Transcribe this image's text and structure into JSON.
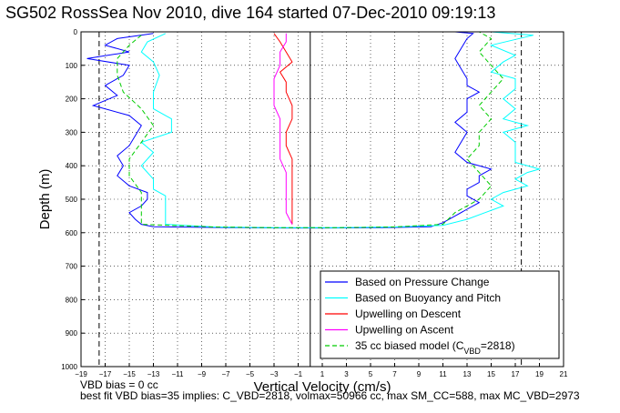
{
  "chart_data": {
    "type": "line",
    "title": "SG502 RossSea Nov 2010, dive 164 started 07-Dec-2010 09:19:13",
    "xlabel": "Vertical Velocity (cm/s)",
    "ylabel": "Depth (m)",
    "xlim": [
      -19,
      21
    ],
    "ylim": [
      0,
      1000
    ],
    "y_reversed": true,
    "grid": true,
    "x_ticks": [
      -19,
      -17,
      -15,
      -13,
      -11,
      -9,
      -7,
      -5,
      -3,
      -1,
      1,
      3,
      5,
      7,
      9,
      11,
      13,
      15,
      17,
      19,
      21
    ],
    "y_ticks": [
      0,
      100,
      200,
      300,
      400,
      500,
      600,
      700,
      800,
      900,
      1000
    ],
    "vertical_dashed_lines_x": [
      -17.5,
      17.5
    ],
    "zero_line_x": 0,
    "legend_position": "bottom-right",
    "series": [
      {
        "name": "Based on Pressure Change",
        "color": "#0000ff",
        "style": "solid",
        "descent": [
          [
            -13,
            5
          ],
          [
            -16,
            20
          ],
          [
            -17,
            40
          ],
          [
            -15,
            60
          ],
          [
            -18.5,
            80
          ],
          [
            -15,
            100
          ],
          [
            -15.5,
            130
          ],
          [
            -17,
            160
          ],
          [
            -16,
            190
          ],
          [
            -18,
            220
          ],
          [
            -15,
            250
          ],
          [
            -14,
            280
          ],
          [
            -14.5,
            310
          ],
          [
            -15,
            340
          ],
          [
            -16,
            370
          ],
          [
            -15.5,
            400
          ],
          [
            -16,
            430
          ],
          [
            -15,
            460
          ],
          [
            -13.5,
            480
          ],
          [
            -13.5,
            500
          ],
          [
            -14,
            520
          ],
          [
            -15,
            540
          ],
          [
            -14.5,
            560
          ],
          [
            -14,
            575
          ],
          [
            -13,
            582
          ]
        ],
        "bottom": [
          [
            -13,
            582
          ],
          [
            -6,
            585
          ],
          [
            -2,
            586
          ],
          [
            1,
            586
          ],
          [
            6,
            585
          ],
          [
            10,
            582
          ],
          [
            11,
            570
          ]
        ],
        "ascent": [
          [
            11,
            570
          ],
          [
            12,
            550
          ],
          [
            13,
            530
          ],
          [
            14,
            510
          ],
          [
            13,
            490
          ],
          [
            13,
            470
          ],
          [
            14,
            450
          ],
          [
            14,
            430
          ],
          [
            15,
            410
          ],
          [
            13,
            390
          ],
          [
            12,
            360
          ],
          [
            12.5,
            330
          ],
          [
            13,
            300
          ],
          [
            12,
            270
          ],
          [
            13,
            240
          ],
          [
            13,
            200
          ],
          [
            14,
            180
          ],
          [
            13,
            160
          ],
          [
            13,
            140
          ],
          [
            12.5,
            110
          ],
          [
            12,
            80
          ],
          [
            12.5,
            50
          ],
          [
            13,
            20
          ],
          [
            13.5,
            5
          ],
          [
            12,
            0
          ]
        ]
      },
      {
        "name": "Based on Buoyancy and Pitch",
        "color": "#00ffff",
        "style": "solid",
        "descent": [
          [
            -12,
            5
          ],
          [
            -13.5,
            30
          ],
          [
            -14,
            60
          ],
          [
            -13,
            90
          ],
          [
            -12.5,
            130
          ],
          [
            -13,
            180
          ],
          [
            -13,
            230
          ],
          [
            -11.5,
            260
          ],
          [
            -11.5,
            300
          ],
          [
            -14,
            330
          ],
          [
            -13,
            360
          ],
          [
            -14,
            400
          ],
          [
            -13,
            440
          ],
          [
            -13,
            470
          ],
          [
            -12,
            490
          ],
          [
            -12,
            520
          ],
          [
            -12,
            540
          ],
          [
            -12,
            560
          ],
          [
            -12,
            575
          ]
        ],
        "bottom": [
          [
            -12,
            575
          ],
          [
            -8,
            583
          ],
          [
            -3,
            585
          ],
          [
            2,
            585
          ],
          [
            7,
            583
          ],
          [
            11,
            578
          ]
        ],
        "ascent": [
          [
            11,
            578
          ],
          [
            13,
            560
          ],
          [
            14.5,
            540
          ],
          [
            16,
            520
          ],
          [
            15,
            500
          ],
          [
            16,
            480
          ],
          [
            18,
            460
          ],
          [
            17,
            440
          ],
          [
            18,
            420
          ],
          [
            19,
            410
          ],
          [
            17,
            390
          ],
          [
            17,
            360
          ],
          [
            17,
            330
          ],
          [
            16,
            300
          ],
          [
            18,
            280
          ],
          [
            16,
            260
          ],
          [
            17,
            230
          ],
          [
            16,
            200
          ],
          [
            17,
            170
          ],
          [
            17,
            140
          ],
          [
            15,
            120
          ],
          [
            16,
            90
          ],
          [
            17,
            70
          ],
          [
            15,
            40
          ],
          [
            18.5,
            10
          ],
          [
            15,
            0
          ]
        ]
      },
      {
        "name": "Upwelling on Descent",
        "color": "#ff0000",
        "style": "solid",
        "descent": [
          [
            -3,
            5
          ],
          [
            -2.5,
            30
          ],
          [
            -2,
            60
          ],
          [
            -1.5,
            90
          ],
          [
            -2.5,
            120
          ],
          [
            -2,
            150
          ],
          [
            -2,
            180
          ],
          [
            -1.5,
            220
          ],
          [
            -1.5,
            260
          ],
          [
            -2,
            300
          ],
          [
            -2,
            340
          ],
          [
            -1.5,
            380
          ],
          [
            -1.5,
            420
          ],
          [
            -1.5,
            460
          ],
          [
            -1.5,
            500
          ],
          [
            -1.5,
            540
          ],
          [
            -1.5,
            575
          ]
        ],
        "bottom": [],
        "ascent": []
      },
      {
        "name": "Upwelling on Ascent",
        "color": "#ff00ff",
        "style": "solid",
        "descent": [],
        "bottom": [],
        "ascent": [
          [
            -1.5,
            575
          ],
          [
            -2,
            540
          ],
          [
            -2,
            500
          ],
          [
            -2,
            460
          ],
          [
            -2,
            420
          ],
          [
            -2.5,
            380
          ],
          [
            -2.5,
            340
          ],
          [
            -2.5,
            300
          ],
          [
            -2.5,
            260
          ],
          [
            -3,
            220
          ],
          [
            -3,
            180
          ],
          [
            -3,
            140
          ],
          [
            -2.5,
            100
          ],
          [
            -2.5,
            60
          ],
          [
            -2,
            30
          ],
          [
            -2,
            5
          ]
        ]
      },
      {
        "name": "35 cc biased model (C",
        "name_sub": "VBD",
        "name_suffix": "=2818)",
        "color": "#00cc00",
        "style": "dashed",
        "descent": [
          [
            -14,
            10
          ],
          [
            -15,
            40
          ],
          [
            -16,
            80
          ],
          [
            -16,
            130
          ],
          [
            -15.5,
            180
          ],
          [
            -14,
            230
          ],
          [
            -13,
            280
          ],
          [
            -14,
            330
          ],
          [
            -15,
            380
          ],
          [
            -15,
            430
          ],
          [
            -14,
            480
          ],
          [
            -14,
            530
          ],
          [
            -14,
            575
          ]
        ],
        "bottom": [
          [
            -14,
            575
          ],
          [
            -8,
            583
          ],
          [
            -3,
            585
          ],
          [
            2,
            585
          ],
          [
            7,
            583
          ],
          [
            11,
            575
          ]
        ],
        "ascent": [
          [
            11,
            575
          ],
          [
            12,
            540
          ],
          [
            14,
            500
          ],
          [
            15,
            460
          ],
          [
            14,
            420
          ],
          [
            13,
            380
          ],
          [
            14,
            340
          ],
          [
            14,
            300
          ],
          [
            15,
            260
          ],
          [
            14,
            220
          ],
          [
            15,
            180
          ],
          [
            16,
            140
          ],
          [
            15,
            100
          ],
          [
            14,
            60
          ],
          [
            15,
            20
          ],
          [
            14,
            0
          ]
        ]
      }
    ]
  },
  "footer": {
    "line1": "VBD bias = 0 cc",
    "line2": "best fit VBD bias=35 implies: C_VBD=2818, volmax=50966 cc, max SM_CC=588, max MC_VBD=2973"
  }
}
